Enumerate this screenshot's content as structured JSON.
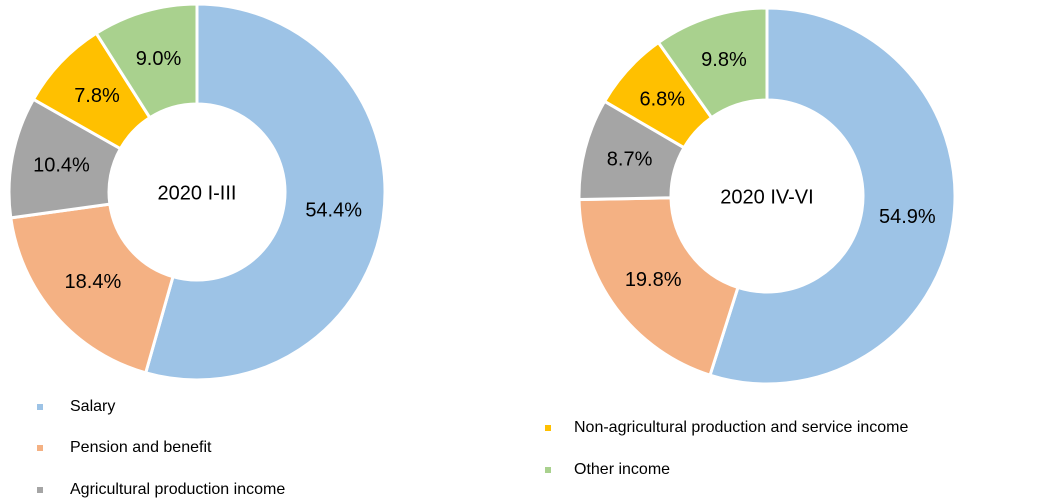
{
  "chart_data": [
    {
      "type": "donut",
      "title": "2020 I-III",
      "categories": [
        "Salary",
        "Pension and benefit",
        "Agricultural production income",
        "Non-agricultural production and service income",
        "Other income"
      ],
      "values": [
        54.4,
        18.4,
        10.4,
        7.8,
        9.0
      ],
      "value_labels": [
        "54.4%",
        "18.4%",
        "10.4%",
        "7.8%",
        "9.0%"
      ],
      "colors": [
        "#9dc3e6",
        "#f4b183",
        "#a5a5a5",
        "#ffc000",
        "#a9d18e"
      ]
    },
    {
      "type": "donut",
      "title": "2020 IV-VI",
      "categories": [
        "Salary",
        "Pension and benefit",
        "Agricultural production income",
        "Non-agricultural production and service income",
        "Other income"
      ],
      "values": [
        54.9,
        19.8,
        8.7,
        6.8,
        9.8
      ],
      "value_labels": [
        "54.9%",
        "19.8%",
        "8.7%",
        "6.8%",
        "9.8%"
      ],
      "colors": [
        "#9dc3e6",
        "#f4b183",
        "#a5a5a5",
        "#ffc000",
        "#a9d18e"
      ]
    }
  ]
}
